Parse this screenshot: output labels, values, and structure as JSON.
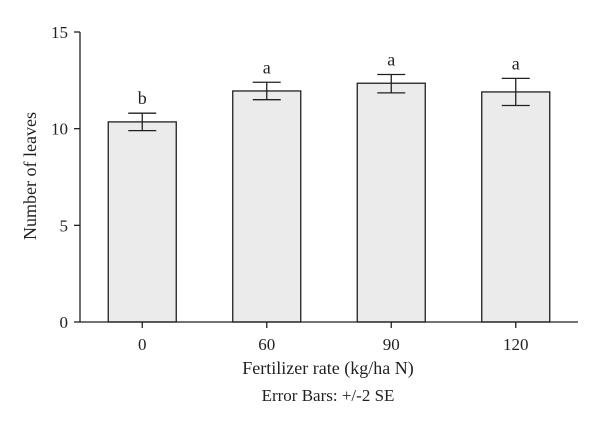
{
  "chart_data": {
    "type": "bar",
    "categories": [
      "0",
      "60",
      "90",
      "120"
    ],
    "values": [
      10.35,
      11.95,
      12.35,
      11.9
    ],
    "error_bars": {
      "type": "+/-2 SE",
      "lower": [
        9.9,
        11.5,
        11.85,
        11.2
      ],
      "upper": [
        10.8,
        12.4,
        12.8,
        12.6
      ]
    },
    "group_letters": [
      "b",
      "a",
      "a",
      "a"
    ],
    "xlabel": "Fertilizer rate (kg/ha N)",
    "ylabel": "Number of leaves",
    "caption": "Error Bars: +/-2 SE",
    "ylim": [
      0,
      15
    ],
    "yticks": [
      0,
      5,
      10,
      15
    ],
    "grid": false,
    "colors": {
      "bar_fill": "#ebebeb",
      "bar_stroke": "#231f20",
      "axis": "#231f20"
    }
  }
}
